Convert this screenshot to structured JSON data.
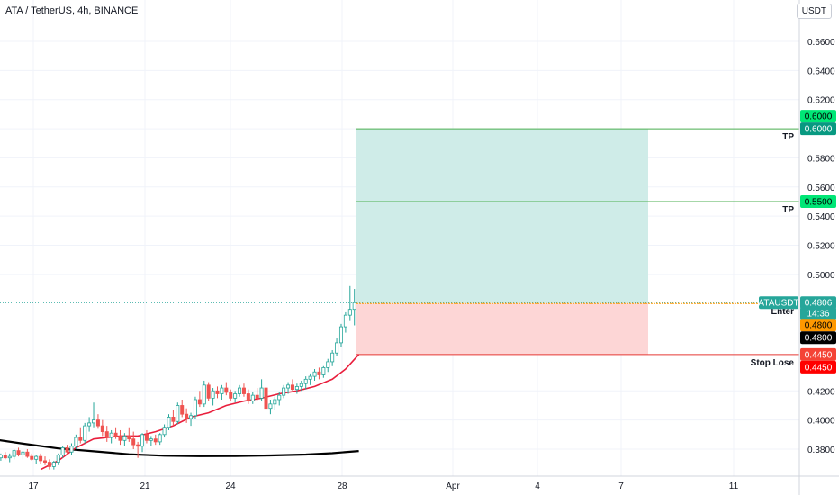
{
  "header": {
    "title": "ATA / TetherUS, 4h, BINANCE",
    "unit": "USDT"
  },
  "colors": {
    "up": "#26a69a",
    "down": "#ef5350",
    "ma_fast": "#e91e3c",
    "ma_slow": "#000000",
    "target_zone": "#cfece8",
    "stop_zone": "#fdd6d6",
    "tp_line": "#4caf50",
    "stop_line": "#e53935",
    "entry_line": "#ff9800",
    "last_price_line": "#26a69a"
  },
  "chart_data": {
    "type": "candlestick",
    "symbol": "ATAUSDT",
    "ylim": [
      0.365,
      0.6745
    ],
    "x_ticks": [
      "17",
      "21",
      "24",
      "28",
      "Apr",
      "4",
      "7",
      "11"
    ],
    "y_ticks": [
      "0.6600",
      "0.6400",
      "0.6200",
      "0.6000",
      "0.5800",
      "0.5600",
      "0.5400",
      "0.5200",
      "0.5000",
      "0.4200",
      "0.4000",
      "0.3800"
    ],
    "candles": [
      [
        0.375,
        0.378,
        0.372,
        0.374
      ],
      [
        0.374,
        0.377,
        0.372,
        0.376
      ],
      [
        0.376,
        0.378,
        0.373,
        0.374
      ],
      [
        0.374,
        0.377,
        0.371,
        0.375
      ],
      [
        0.375,
        0.38,
        0.373,
        0.379
      ],
      [
        0.379,
        0.381,
        0.375,
        0.376
      ],
      [
        0.376,
        0.379,
        0.373,
        0.378
      ],
      [
        0.378,
        0.38,
        0.374,
        0.375
      ],
      [
        0.375,
        0.377,
        0.372,
        0.373
      ],
      [
        0.373,
        0.376,
        0.37,
        0.375
      ],
      [
        0.375,
        0.377,
        0.37,
        0.372
      ],
      [
        0.372,
        0.375,
        0.369,
        0.371
      ],
      [
        0.371,
        0.373,
        0.366,
        0.368
      ],
      [
        0.368,
        0.372,
        0.366,
        0.371
      ],
      [
        0.371,
        0.377,
        0.369,
        0.376
      ],
      [
        0.376,
        0.382,
        0.374,
        0.381
      ],
      [
        0.381,
        0.383,
        0.376,
        0.378
      ],
      [
        0.378,
        0.384,
        0.376,
        0.382
      ],
      [
        0.382,
        0.39,
        0.38,
        0.388
      ],
      [
        0.388,
        0.395,
        0.384,
        0.386
      ],
      [
        0.386,
        0.398,
        0.384,
        0.396
      ],
      [
        0.396,
        0.402,
        0.392,
        0.398
      ],
      [
        0.398,
        0.412,
        0.395,
        0.4
      ],
      [
        0.4,
        0.404,
        0.394,
        0.396
      ],
      [
        0.396,
        0.4,
        0.389,
        0.392
      ],
      [
        0.392,
        0.396,
        0.385,
        0.388
      ],
      [
        0.388,
        0.393,
        0.384,
        0.391
      ],
      [
        0.391,
        0.395,
        0.387,
        0.389
      ],
      [
        0.389,
        0.393,
        0.383,
        0.386
      ],
      [
        0.386,
        0.391,
        0.382,
        0.389
      ],
      [
        0.389,
        0.395,
        0.385,
        0.387
      ],
      [
        0.387,
        0.392,
        0.38,
        0.383
      ],
      [
        0.383,
        0.385,
        0.374,
        0.382
      ],
      [
        0.382,
        0.391,
        0.378,
        0.39
      ],
      [
        0.39,
        0.393,
        0.384,
        0.386
      ],
      [
        0.386,
        0.389,
        0.382,
        0.387
      ],
      [
        0.387,
        0.39,
        0.383,
        0.385
      ],
      [
        0.385,
        0.391,
        0.383,
        0.39
      ],
      [
        0.39,
        0.397,
        0.388,
        0.395
      ],
      [
        0.395,
        0.404,
        0.393,
        0.402
      ],
      [
        0.402,
        0.407,
        0.396,
        0.399
      ],
      [
        0.399,
        0.412,
        0.397,
        0.41
      ],
      [
        0.41,
        0.414,
        0.402,
        0.404
      ],
      [
        0.404,
        0.408,
        0.398,
        0.401
      ],
      [
        0.401,
        0.405,
        0.396,
        0.403
      ],
      [
        0.403,
        0.416,
        0.401,
        0.414
      ],
      [
        0.414,
        0.42,
        0.409,
        0.411
      ],
      [
        0.411,
        0.427,
        0.409,
        0.424
      ],
      [
        0.424,
        0.426,
        0.413,
        0.415
      ],
      [
        0.415,
        0.422,
        0.41,
        0.42
      ],
      [
        0.42,
        0.423,
        0.415,
        0.418
      ],
      [
        0.418,
        0.424,
        0.414,
        0.422
      ],
      [
        0.422,
        0.426,
        0.417,
        0.419
      ],
      [
        0.419,
        0.421,
        0.413,
        0.415
      ],
      [
        0.415,
        0.42,
        0.412,
        0.418
      ],
      [
        0.418,
        0.424,
        0.416,
        0.422
      ],
      [
        0.422,
        0.425,
        0.416,
        0.418
      ],
      [
        0.418,
        0.421,
        0.411,
        0.413
      ],
      [
        0.413,
        0.419,
        0.411,
        0.417
      ],
      [
        0.417,
        0.422,
        0.413,
        0.415
      ],
      [
        0.415,
        0.428,
        0.413,
        0.422
      ],
      [
        0.422,
        0.424,
        0.406,
        0.408
      ],
      [
        0.408,
        0.414,
        0.404,
        0.411
      ],
      [
        0.411,
        0.416,
        0.407,
        0.414
      ],
      [
        0.414,
        0.419,
        0.41,
        0.417
      ],
      [
        0.417,
        0.424,
        0.415,
        0.422
      ],
      [
        0.422,
        0.426,
        0.418,
        0.424
      ],
      [
        0.424,
        0.428,
        0.419,
        0.421
      ],
      [
        0.421,
        0.425,
        0.418,
        0.423
      ],
      [
        0.423,
        0.427,
        0.42,
        0.425
      ],
      [
        0.425,
        0.43,
        0.421,
        0.428
      ],
      [
        0.428,
        0.432,
        0.424,
        0.43
      ],
      [
        0.43,
        0.435,
        0.427,
        0.433
      ],
      [
        0.433,
        0.436,
        0.428,
        0.431
      ],
      [
        0.431,
        0.437,
        0.429,
        0.436
      ],
      [
        0.436,
        0.442,
        0.433,
        0.44
      ],
      [
        0.44,
        0.448,
        0.437,
        0.446
      ],
      [
        0.446,
        0.456,
        0.444,
        0.453
      ],
      [
        0.453,
        0.466,
        0.45,
        0.464
      ],
      [
        0.464,
        0.474,
        0.46,
        0.472
      ],
      [
        0.472,
        0.492,
        0.468,
        0.476
      ],
      [
        0.476,
        0.49,
        0.465,
        0.4806
      ]
    ],
    "ma_fast": [
      [
        10,
        0.366
      ],
      [
        14,
        0.372
      ],
      [
        18,
        0.381
      ],
      [
        22,
        0.387
      ],
      [
        28,
        0.389
      ],
      [
        32,
        0.389
      ],
      [
        36,
        0.392
      ],
      [
        40,
        0.396
      ],
      [
        44,
        0.402
      ],
      [
        48,
        0.405
      ],
      [
        52,
        0.41
      ],
      [
        56,
        0.413
      ],
      [
        60,
        0.415
      ],
      [
        64,
        0.418
      ],
      [
        68,
        0.42
      ],
      [
        72,
        0.423
      ],
      [
        76,
        0.428
      ],
      [
        79,
        0.435
      ],
      [
        82,
        0.445
      ]
    ],
    "ma_slow": [
      [
        0,
        0.3865
      ],
      [
        6,
        0.3838
      ],
      [
        14,
        0.3805
      ],
      [
        22,
        0.3785
      ],
      [
        30,
        0.3765
      ],
      [
        38,
        0.3755
      ],
      [
        46,
        0.3752
      ],
      [
        54,
        0.3753
      ],
      [
        62,
        0.3757
      ],
      [
        70,
        0.3763
      ],
      [
        76,
        0.3772
      ],
      [
        82,
        0.3787
      ]
    ],
    "position": {
      "entry": 0.48,
      "stop": 0.445,
      "targets": [
        0.6,
        0.55
      ],
      "tp_label": "TP",
      "entry_label": "Enter",
      "stop_label": "Stop Lose"
    },
    "price_tags": {
      "last": {
        "symbol": "ATAUSDT",
        "price": "0.4806",
        "countdown": "14:36"
      },
      "tp1": [
        "0.6000",
        "0.6000"
      ],
      "tp2": "0.5500",
      "entry": [
        "0.4800",
        "0.4800"
      ],
      "stop": [
        "0.4450",
        "0.4450"
      ]
    }
  }
}
